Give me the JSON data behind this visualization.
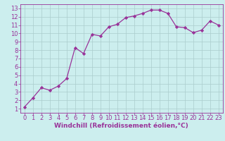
{
  "x": [
    0,
    1,
    2,
    3,
    4,
    5,
    6,
    7,
    8,
    9,
    10,
    11,
    12,
    13,
    14,
    15,
    16,
    17,
    18,
    19,
    20,
    21,
    22,
    23
  ],
  "y": [
    1.2,
    2.3,
    3.5,
    3.2,
    3.7,
    4.6,
    8.3,
    7.6,
    9.9,
    9.7,
    10.8,
    11.1,
    11.9,
    12.1,
    12.4,
    12.8,
    12.8,
    12.4,
    10.8,
    10.7,
    10.1,
    10.4,
    11.5,
    11.0
  ],
  "line_color": "#993399",
  "marker": "D",
  "marker_size": 2.2,
  "bg_color": "#cceeee",
  "grid_color": "#aacccc",
  "xlabel": "Windchill (Refroidissement éolien,°C)",
  "xlim": [
    -0.5,
    23.5
  ],
  "ylim": [
    0.5,
    13.5
  ],
  "xticks": [
    0,
    1,
    2,
    3,
    4,
    5,
    6,
    7,
    8,
    9,
    10,
    11,
    12,
    13,
    14,
    15,
    16,
    17,
    18,
    19,
    20,
    21,
    22,
    23
  ],
  "yticks": [
    1,
    2,
    3,
    4,
    5,
    6,
    7,
    8,
    9,
    10,
    11,
    12,
    13
  ],
  "tick_color": "#993399",
  "label_color": "#993399",
  "xlabel_fontsize": 6.5,
  "tick_fontsize": 6.0,
  "linewidth": 0.9
}
